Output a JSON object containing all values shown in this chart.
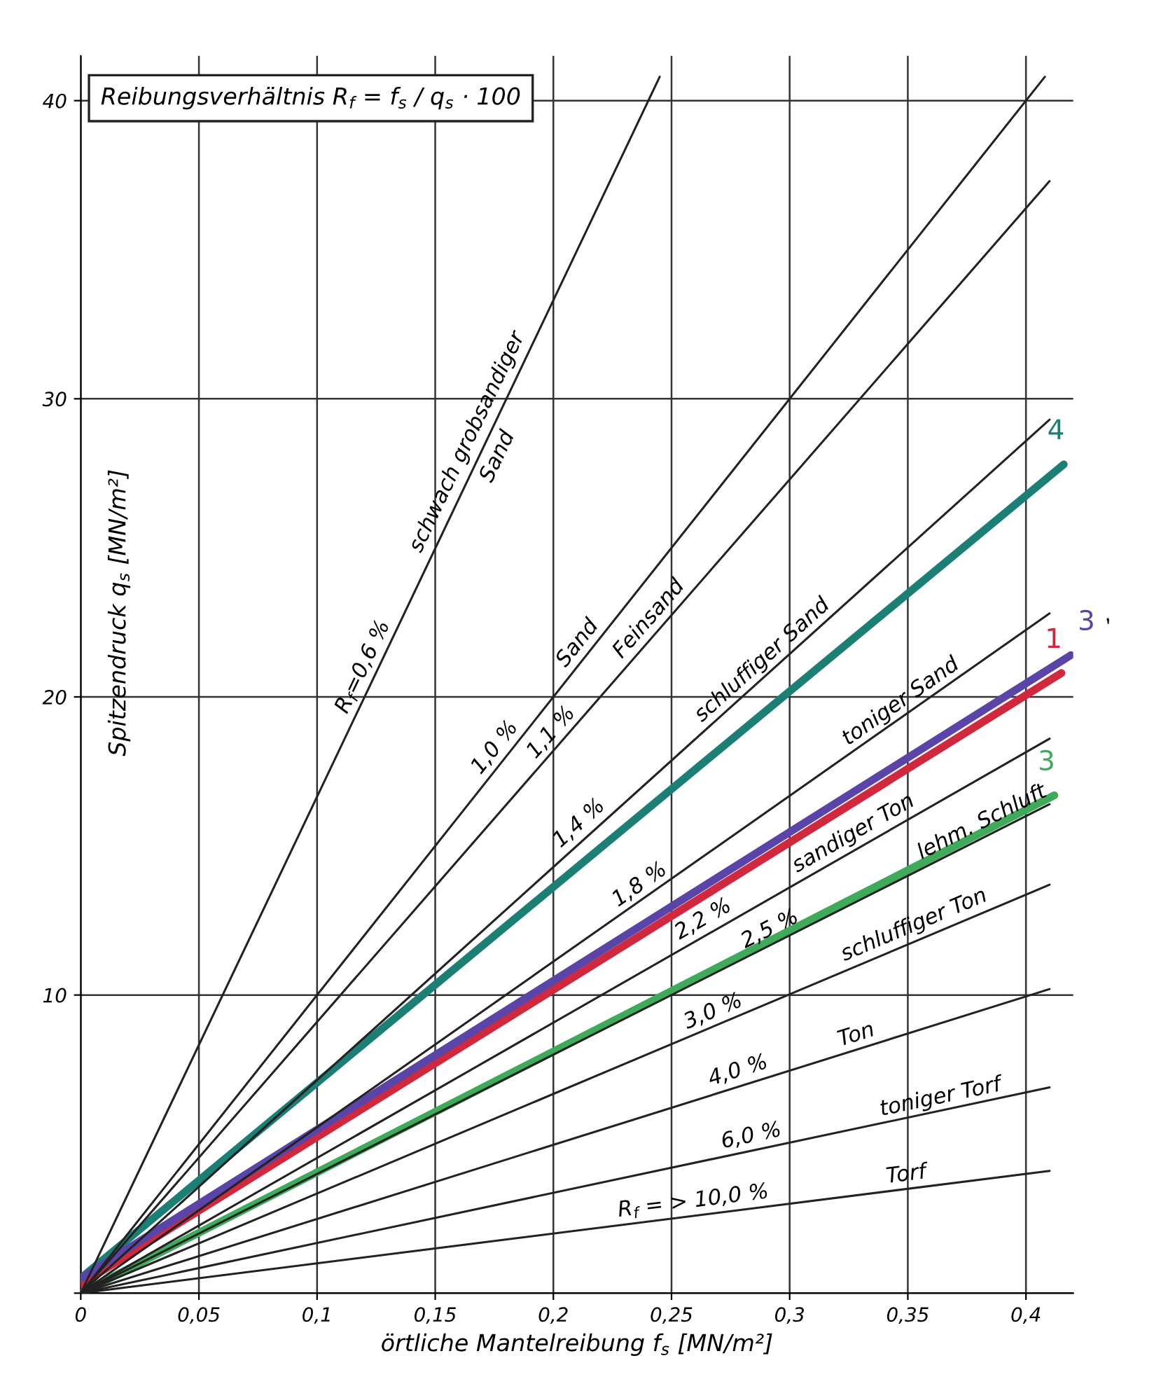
{
  "chart_data": {
    "type": "line",
    "xlabel": "örtliche Mantelreibung f$_{s}$ [MN/m²]",
    "ylabel": "Spitzendruck q$_{s}$ [MN/m²]",
    "xlim": [
      0,
      0.42
    ],
    "ylim": [
      0,
      41.5
    ],
    "xticks": [
      0,
      {
        "value": 0.05,
        "label": "0,05"
      },
      {
        "value": 0.1,
        "label": "0,1"
      },
      {
        "value": 0.15,
        "label": "0,15"
      },
      {
        "value": 0.2,
        "label": "0,2"
      },
      {
        "value": 0.25,
        "label": "0,25"
      },
      {
        "value": 0.3,
        "label": "0,3"
      },
      {
        "value": 0.35,
        "label": "0,35"
      },
      {
        "value": 0.4,
        "label": "0,4"
      }
    ],
    "yticks": [
      {
        "value": 0,
        "label": null
      },
      10,
      20,
      30,
      40
    ],
    "grid": true,
    "legend": false,
    "marker": "none",
    "line_style": "solid",
    "series": [
      {
        "color": "#222222",
        "x": [
          0,
          0.245
        ],
        "values": [
          0,
          40.8
        ]
      },
      {
        "color": "#222222",
        "x": [
          0,
          0.408
        ],
        "values": [
          0,
          40.8
        ]
      },
      {
        "color": "#222222",
        "x": [
          0,
          0.41
        ],
        "values": [
          0,
          37.3
        ]
      },
      {
        "color": "#222222",
        "x": [
          0,
          0.41
        ],
        "values": [
          0,
          29.3
        ]
      },
      {
        "color": "#222222",
        "x": [
          0,
          0.41
        ],
        "values": [
          0,
          22.8
        ]
      },
      {
        "color": "#222222",
        "x": [
          0,
          0.41
        ],
        "values": [
          0,
          18.6
        ]
      },
      {
        "color": "#222222",
        "x": [
          0,
          0.41
        ],
        "values": [
          0,
          16.4
        ]
      },
      {
        "color": "#222222",
        "x": [
          0,
          0.41
        ],
        "values": [
          0,
          13.7
        ]
      },
      {
        "color": "#222222",
        "x": [
          0,
          0.41
        ],
        "values": [
          0,
          10.2
        ]
      },
      {
        "color": "#222222",
        "x": [
          0,
          0.41
        ],
        "values": [
          0,
          6.9
        ]
      },
      {
        "color": "#222222",
        "x": [
          0,
          0.41
        ],
        "values": [
          0,
          4.1
        ]
      },
      {
        "name": "4",
        "color": "#1b7f75",
        "x": [
          0,
          0.416
        ],
        "values": [
          0.5,
          27.8
        ]
      },
      {
        "name": "1",
        "color": "#d0283c",
        "x": [
          0,
          0.415
        ],
        "values": [
          0.3,
          20.8
        ]
      },
      {
        "name": "3",
        "color": "#5a44a8",
        "x": [
          0,
          0.419
        ],
        "values": [
          0.5,
          21.4
        ]
      },
      {
        "name": "3",
        "color": "#3faa5a",
        "x": [
          0,
          0.412
        ],
        "values": [
          0,
          16.7
        ]
      }
    ],
    "annotations": [
      "Reibungsverhältnis R$_{f}$ = f$_{s}$ / q$_{s}$ · 100",
      {
        "text": "R$_{f}$=0,6 %",
        "x": 0.125,
        "y": 20.8
      },
      {
        "text": "schwach grobsandiger\nSand",
        "x": 0.17,
        "y": 28.3
      },
      {
        "text": "Sand",
        "x": 0.215,
        "y": 21.5
      },
      {
        "text": "Feinsand",
        "x": 0.245,
        "y": 22.3
      },
      {
        "text": "schluffiger Sand",
        "x": 0.29,
        "y": 20.7
      },
      {
        "text": "toniger Sand",
        "x": 0.31,
        "y": 17.2
      },
      {
        "text": "1,0 %",
        "x": 0.18,
        "y": 18.0
      },
      {
        "text": "1,1 %",
        "x": 0.195,
        "y": 17.7
      },
      {
        "text": "1,4 %",
        "x": 0.215,
        "y": 15.4
      },
      {
        "text": "1,8 %",
        "x": 0.24,
        "y": 13.3
      },
      {
        "text": "sandiger Ton",
        "x": 0.33,
        "y": 15.0
      },
      {
        "text": "lehm. Schluft",
        "x": 0.34,
        "y": 13.6
      },
      {
        "text": "2,2 %",
        "x": 0.255,
        "y": 11.6
      },
      {
        "text": "schluffiger Ton",
        "x": 0.355,
        "y": 11.9
      },
      {
        "text": "2,5 %",
        "x": 0.265,
        "y": 10.6
      },
      {
        "text": "3,0 %",
        "x": 0.27,
        "y": 9.0
      },
      {
        "text": "Ton",
        "x": 0.33,
        "y": 8.2
      },
      {
        "text": "4,0 %",
        "x": 0.28,
        "y": 7.0
      },
      {
        "text": "toniger Torf",
        "x": 0.365,
        "y": 6.1
      },
      {
        "text": "6,0 %",
        "x": 0.285,
        "y": 4.8
      },
      {
        "text": "R$_{f}$ = > 10,0 %",
        "x": 0.26,
        "y": 2.6
      },
      {
        "text": "Torf",
        "x": 0.35,
        "y": 3.5
      },
      {
        "text": ",",
        "x": 0.415,
        "y": 21.2
      }
    ]
  }
}
